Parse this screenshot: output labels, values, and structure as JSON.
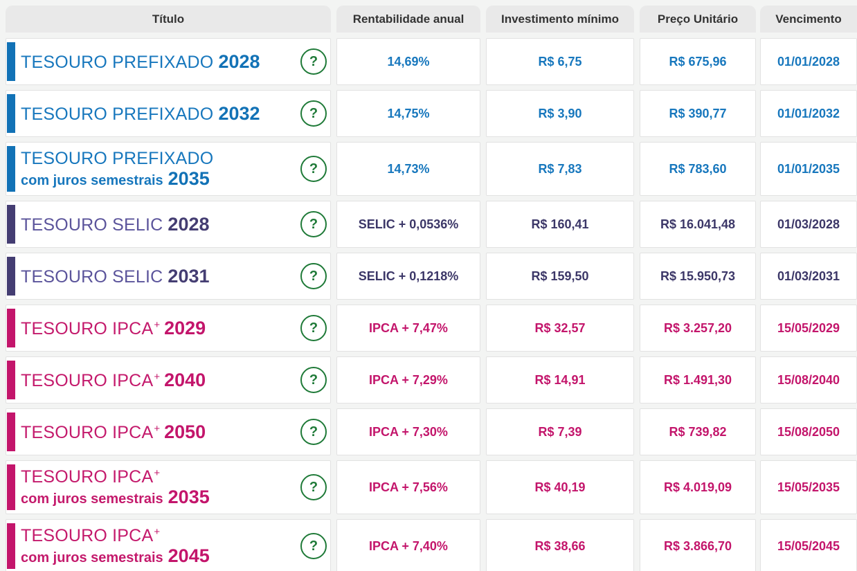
{
  "table": {
    "columns": [
      {
        "label": "Título"
      },
      {
        "label": "Rentabilidade anual"
      },
      {
        "label": "Investimento mínimo"
      },
      {
        "label": "Preço Unitário"
      },
      {
        "label": "Vencimento"
      }
    ],
    "rows": [
      {
        "theme": "blue",
        "name": "TESOURO PREFIXADO",
        "sup": "",
        "subtitle": "",
        "year": "2028",
        "rate": "14,69%",
        "min_investment": "R$ 6,75",
        "unit_price": "R$ 675,96",
        "maturity": "01/01/2028"
      },
      {
        "theme": "blue",
        "name": "TESOURO PREFIXADO",
        "sup": "",
        "subtitle": "",
        "year": "2032",
        "rate": "14,75%",
        "min_investment": "R$ 3,90",
        "unit_price": "R$ 390,77",
        "maturity": "01/01/2032"
      },
      {
        "theme": "blue",
        "name": "TESOURO PREFIXADO",
        "sup": "",
        "subtitle": "com juros semestrais",
        "year": "2035",
        "rate": "14,73%",
        "min_investment": "R$ 7,83",
        "unit_price": "R$ 783,60",
        "maturity": "01/01/2035"
      },
      {
        "theme": "purple",
        "name": "TESOURO SELIC",
        "sup": "",
        "subtitle": "",
        "year": "2028",
        "rate": "SELIC + 0,0536%",
        "min_investment": "R$ 160,41",
        "unit_price": "R$ 16.041,48",
        "maturity": "01/03/2028"
      },
      {
        "theme": "purple",
        "name": "TESOURO SELIC",
        "sup": "",
        "subtitle": "",
        "year": "2031",
        "rate": "SELIC + 0,1218%",
        "min_investment": "R$ 159,50",
        "unit_price": "R$ 15.950,73",
        "maturity": "01/03/2031"
      },
      {
        "theme": "pink",
        "name": "TESOURO IPCA",
        "sup": "+",
        "subtitle": "",
        "year": "2029",
        "rate": "IPCA + 7,47%",
        "min_investment": "R$ 32,57",
        "unit_price": "R$ 3.257,20",
        "maturity": "15/05/2029"
      },
      {
        "theme": "pink",
        "name": "TESOURO IPCA",
        "sup": "+",
        "subtitle": "",
        "year": "2040",
        "rate": "IPCA + 7,29%",
        "min_investment": "R$ 14,91",
        "unit_price": "R$ 1.491,30",
        "maturity": "15/08/2040"
      },
      {
        "theme": "pink",
        "name": "TESOURO IPCA",
        "sup": "+",
        "subtitle": "",
        "year": "2050",
        "rate": "IPCA + 7,30%",
        "min_investment": "R$ 7,39",
        "unit_price": "R$ 739,82",
        "maturity": "15/08/2050"
      },
      {
        "theme": "pink",
        "name": "TESOURO IPCA",
        "sup": "+",
        "subtitle": "com juros semestrais",
        "year": "2035",
        "rate": "IPCA + 7,56%",
        "min_investment": "R$ 40,19",
        "unit_price": "R$ 4.019,09",
        "maturity": "15/05/2035"
      },
      {
        "theme": "pink",
        "name": "TESOURO IPCA",
        "sup": "+",
        "subtitle": "com juros semestrais",
        "year": "2045",
        "rate": "IPCA + 7,40%",
        "min_investment": "R$ 38,66",
        "unit_price": "R$ 3.866,70",
        "maturity": "15/05/2045"
      }
    ]
  },
  "icons": {
    "help_label": "?"
  },
  "colors": {
    "blue": "#1777BD",
    "purple_light": "#5B549B",
    "purple_dark": "#443D72",
    "pink": "#C3156B",
    "green_help": "#1F7A38",
    "header_bg": "#E9E9E9",
    "header_text": "#333333",
    "page_bg": "#F3F4F3"
  }
}
